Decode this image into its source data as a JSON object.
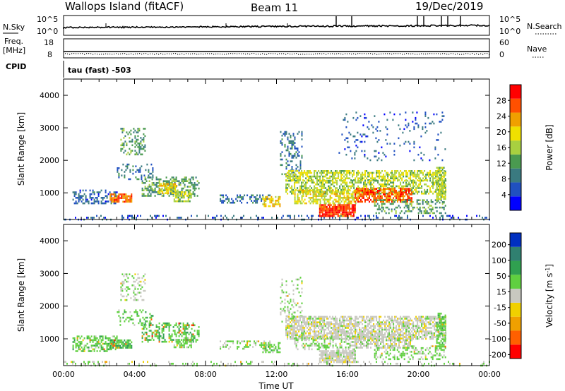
{
  "header": {
    "station": "Wallops Island (fitACF)",
    "beam": "Beam 11",
    "date": "19/Dec/2019"
  },
  "top_panels": {
    "nsky_label": "N.Sky",
    "nsky_ticks": [
      "10^5",
      "10^0"
    ],
    "nsearch_label": "N.Search",
    "nsearch_ticks": [
      "10^5",
      "10^0"
    ],
    "freq_label": "Freq.",
    "freq_unit": "[MHz]",
    "freq_ticks": [
      "18",
      "8"
    ],
    "nave_label": "Nave",
    "nave_ticks": [
      "60",
      "0"
    ],
    "cpid_label": "CPID",
    "cpid_value": "tau (fast) -503"
  },
  "chart_data": [
    {
      "type": "heatmap",
      "title": "",
      "xlabel": "",
      "ylabel": "Slant Range [km]",
      "colorbar_label": "Power [dB]",
      "colorbar_ticks": [
        "28",
        "24",
        "20",
        "16",
        "12",
        "8",
        "4"
      ],
      "colorbar_range": [
        0,
        32
      ],
      "colorbar_colors": [
        "#0000ff",
        "#2050c0",
        "#3a7a80",
        "#4a9a50",
        "#a8d040",
        "#f0e000",
        "#f0a000",
        "#ff5000",
        "#ff0000"
      ],
      "xlim": [
        0,
        24
      ],
      "ylim": [
        180,
        4500
      ],
      "yticks": [
        "1000",
        "2000",
        "3000",
        "4000"
      ],
      "regions": [
        {
          "t0": 0.5,
          "t1": 3.0,
          "r0": 650,
          "r1": 1100,
          "level": 7,
          "density": 0.45
        },
        {
          "t0": 2.6,
          "t1": 3.8,
          "r0": 720,
          "r1": 980,
          "level": 26,
          "density": 0.8
        },
        {
          "t0": 3.2,
          "t1": 4.6,
          "r0": 2200,
          "r1": 3000,
          "level": 12,
          "density": 0.35
        },
        {
          "t0": 3.0,
          "t1": 5.0,
          "r0": 1400,
          "r1": 1900,
          "level": 8,
          "density": 0.25
        },
        {
          "t0": 4.4,
          "t1": 7.6,
          "r0": 900,
          "r1": 1500,
          "level": 12,
          "density": 0.45
        },
        {
          "t0": 5.3,
          "t1": 6.4,
          "r0": 1000,
          "r1": 1300,
          "level": 20,
          "density": 0.7
        },
        {
          "t0": 6.2,
          "t1": 7.2,
          "r0": 750,
          "r1": 1050,
          "level": 16,
          "density": 0.6
        },
        {
          "t0": 0.0,
          "t1": 24.0,
          "r0": 180,
          "r1": 320,
          "level": 6,
          "density": 0.18
        },
        {
          "t0": 8.8,
          "t1": 11.6,
          "r0": 700,
          "r1": 950,
          "level": 8,
          "density": 0.4
        },
        {
          "t0": 11.2,
          "t1": 12.2,
          "r0": 600,
          "r1": 900,
          "level": 20,
          "density": 0.55
        },
        {
          "t0": 12.2,
          "t1": 13.4,
          "r0": 1500,
          "r1": 2900,
          "level": 8,
          "density": 0.25
        },
        {
          "t0": 12.5,
          "t1": 21.5,
          "r0": 1400,
          "r1": 1700,
          "level": 17,
          "density": 0.6
        },
        {
          "t0": 12.5,
          "t1": 21.5,
          "r0": 1000,
          "r1": 1400,
          "level": 16,
          "density": 0.55
        },
        {
          "t0": 13.0,
          "t1": 16.5,
          "r0": 700,
          "r1": 1100,
          "level": 19,
          "density": 0.55
        },
        {
          "t0": 14.4,
          "t1": 16.4,
          "r0": 280,
          "r1": 650,
          "level": 28,
          "density": 0.9
        },
        {
          "t0": 16.4,
          "t1": 19.6,
          "r0": 750,
          "r1": 1150,
          "level": 26,
          "density": 0.75
        },
        {
          "t0": 17.5,
          "t1": 21.5,
          "r0": 400,
          "r1": 800,
          "level": 12,
          "density": 0.35
        },
        {
          "t0": 15.5,
          "t1": 21.5,
          "r0": 2000,
          "r1": 3500,
          "level": 6,
          "density": 0.08
        },
        {
          "t0": 21.0,
          "t1": 21.5,
          "r0": 700,
          "r1": 1800,
          "level": 16,
          "density": 0.6
        }
      ]
    },
    {
      "type": "heatmap",
      "title": "",
      "xlabel": "Time UT",
      "ylabel": "Slant Range [km]",
      "colorbar_label": "Velocity [m s^-1]",
      "colorbar_ticks": [
        "200",
        "100",
        "50",
        "15",
        "-15",
        "-50",
        "-100",
        "-200"
      ],
      "colorbar_range": [
        -250,
        250
      ],
      "colorbar_colors": [
        "#ff0000",
        "#ff6000",
        "#f0a000",
        "#f0d000",
        "#c8c8c0",
        "#60d040",
        "#30a050",
        "#308070",
        "#0030c0"
      ],
      "xlim": [
        0,
        24
      ],
      "ylim": [
        180,
        4500
      ],
      "yticks": [
        "1000",
        "2000",
        "3000",
        "4000"
      ],
      "xticks": [
        "00:00",
        "04:00",
        "08:00",
        "12:00",
        "16:00",
        "20:00",
        "00:00"
      ],
      "regions": [
        {
          "t0": 0.5,
          "t1": 3.0,
          "r0": 650,
          "r1": 1100,
          "level": 60,
          "density": 0.45
        },
        {
          "t0": 2.6,
          "t1": 3.8,
          "r0": 720,
          "r1": 980,
          "level": 80,
          "density": 0.8
        },
        {
          "t0": 3.2,
          "t1": 4.6,
          "r0": 2200,
          "r1": 3000,
          "level": 20,
          "density": 0.3
        },
        {
          "t0": 3.0,
          "t1": 5.0,
          "r0": 1400,
          "r1": 1900,
          "level": 60,
          "density": 0.25
        },
        {
          "t0": 4.4,
          "t1": 7.6,
          "r0": 900,
          "r1": 1500,
          "level": 70,
          "density": 0.45
        },
        {
          "t0": 6.2,
          "t1": 7.2,
          "r0": 750,
          "r1": 1050,
          "level": 50,
          "density": 0.6
        },
        {
          "t0": 0.0,
          "t1": 24.0,
          "r0": 180,
          "r1": 320,
          "level": 30,
          "density": 0.15
        },
        {
          "t0": 8.8,
          "t1": 11.6,
          "r0": 700,
          "r1": 950,
          "level": 40,
          "density": 0.4
        },
        {
          "t0": 11.2,
          "t1": 12.2,
          "r0": 600,
          "r1": 900,
          "level": 55,
          "density": 0.5
        },
        {
          "t0": 12.2,
          "t1": 13.4,
          "r0": 1500,
          "r1": 2900,
          "level": 30,
          "density": 0.2
        },
        {
          "t0": 12.5,
          "t1": 21.5,
          "r0": 1000,
          "r1": 1700,
          "level": 0,
          "density": 0.7
        },
        {
          "t0": 13.0,
          "t1": 16.5,
          "r0": 700,
          "r1": 1100,
          "level": 30,
          "density": 0.45
        },
        {
          "t0": 14.4,
          "t1": 16.4,
          "r0": 280,
          "r1": 650,
          "level": 0,
          "density": 0.85
        },
        {
          "t0": 16.4,
          "t1": 19.6,
          "r0": 750,
          "r1": 1150,
          "level": 0,
          "density": 0.65
        },
        {
          "t0": 17.5,
          "t1": 21.5,
          "r0": 400,
          "r1": 800,
          "level": 40,
          "density": 0.3
        },
        {
          "t0": 21.0,
          "t1": 21.5,
          "r0": 700,
          "r1": 1800,
          "level": 60,
          "density": 0.55
        }
      ]
    }
  ]
}
